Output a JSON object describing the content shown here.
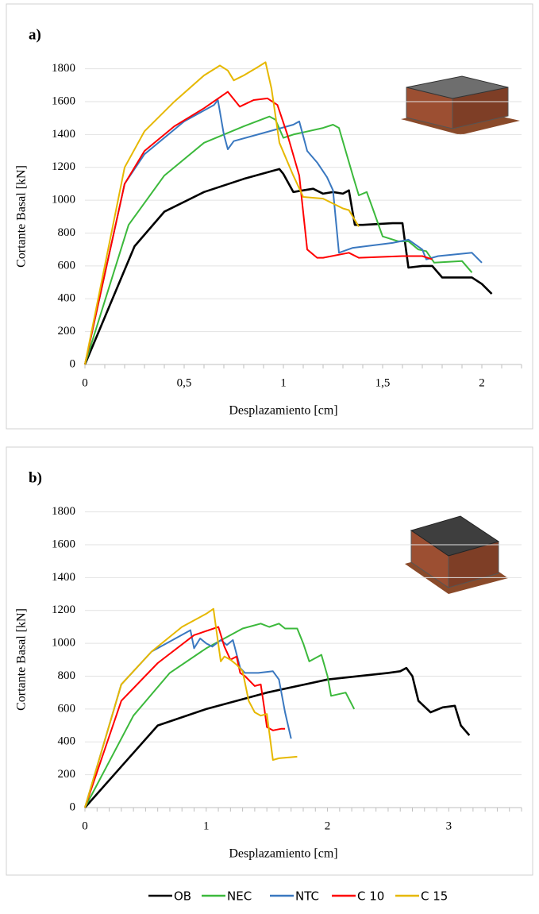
{
  "chart_data": [
    {
      "type": "line",
      "label": "a)",
      "xlabel": "Desplazamiento [cm]",
      "ylabel": "Cortante Basal [kN]",
      "xlim": [
        0,
        2.2
      ],
      "ylim": [
        0,
        1900
      ],
      "xticks": [
        0,
        {
          "value": 0.5,
          "label": "0,5"
        },
        1,
        {
          "value": 1.5,
          "label": "1,5"
        },
        2
      ],
      "yticks": [
        0,
        200,
        400,
        600,
        800,
        1000,
        1200,
        1400,
        1600,
        1800
      ],
      "grid": true,
      "series": [
        {
          "name": "OB",
          "color": "#000000",
          "x": [
            0,
            0.25,
            0.4,
            0.6,
            0.8,
            0.95,
            0.98,
            1.0,
            1.05,
            1.1,
            1.15,
            1.2,
            1.25,
            1.3,
            1.33,
            1.36,
            1.4,
            1.55,
            1.6,
            1.63,
            1.7,
            1.75,
            1.8,
            1.9,
            1.95,
            2.0,
            2.05
          ],
          "values": [
            0,
            720,
            930,
            1050,
            1130,
            1180,
            1190,
            1160,
            1050,
            1060,
            1070,
            1040,
            1050,
            1040,
            1060,
            850,
            850,
            860,
            860,
            590,
            600,
            600,
            530,
            530,
            530,
            490,
            430
          ]
        },
        {
          "name": "NEC",
          "color": "#3cb93c",
          "x": [
            0,
            0.22,
            0.4,
            0.6,
            0.8,
            0.93,
            0.96,
            1.0,
            1.05,
            1.2,
            1.25,
            1.28,
            1.35,
            1.38,
            1.42,
            1.45,
            1.5,
            1.58,
            1.63,
            1.68,
            1.72,
            1.76,
            1.9,
            1.95
          ],
          "values": [
            0,
            850,
            1150,
            1350,
            1450,
            1510,
            1490,
            1380,
            1400,
            1440,
            1460,
            1440,
            1150,
            1030,
            1050,
            950,
            780,
            750,
            750,
            700,
            690,
            620,
            630,
            560
          ]
        },
        {
          "name": "NTC",
          "color": "#3a78c0",
          "x": [
            0,
            0.2,
            0.3,
            0.5,
            0.65,
            0.67,
            0.7,
            0.72,
            0.75,
            0.9,
            1.05,
            1.08,
            1.12,
            1.17,
            1.22,
            1.25,
            1.28,
            1.35,
            1.55,
            1.63,
            1.7,
            1.72,
            1.78,
            1.95,
            2.0
          ],
          "values": [
            0,
            1100,
            1280,
            1480,
            1580,
            1610,
            1400,
            1310,
            1360,
            1410,
            1460,
            1480,
            1300,
            1230,
            1140,
            1060,
            680,
            710,
            740,
            760,
            700,
            640,
            660,
            680,
            620
          ]
        },
        {
          "name": "C 10",
          "color": "#ff0000",
          "x": [
            0,
            0.2,
            0.3,
            0.45,
            0.6,
            0.72,
            0.78,
            0.85,
            0.92,
            0.97,
            1.02,
            1.08,
            1.12,
            1.17,
            1.2,
            1.33,
            1.38,
            1.6,
            1.7,
            1.75
          ],
          "values": [
            0,
            1100,
            1300,
            1450,
            1560,
            1660,
            1570,
            1610,
            1620,
            1580,
            1400,
            1150,
            700,
            650,
            650,
            680,
            650,
            660,
            660,
            640
          ]
        },
        {
          "name": "C 15",
          "color": "#e6b800",
          "x": [
            0,
            0.2,
            0.3,
            0.45,
            0.6,
            0.68,
            0.72,
            0.75,
            0.8,
            0.87,
            0.91,
            0.94,
            0.98,
            1.05,
            1.1,
            1.2,
            1.3,
            1.33,
            1.38
          ],
          "values": [
            0,
            1200,
            1420,
            1600,
            1760,
            1820,
            1790,
            1730,
            1760,
            1810,
            1840,
            1680,
            1350,
            1150,
            1020,
            1010,
            950,
            940,
            840
          ]
        }
      ]
    },
    {
      "type": "line",
      "label": "b)",
      "xlabel": "Desplazamiento [cm]",
      "ylabel": "Cortante Basal [kN]",
      "xlim": [
        0,
        3.6
      ],
      "ylim": [
        0,
        1900
      ],
      "xticks": [
        0,
        1,
        2,
        3
      ],
      "yticks": [
        0,
        200,
        400,
        600,
        800,
        1000,
        1200,
        1400,
        1600,
        1800
      ],
      "grid": true,
      "series": [
        {
          "color": "#000000",
          "x": [
            0,
            0.3,
            0.6,
            1,
            1.5,
            2,
            2.5,
            2.6,
            2.65,
            2.7,
            2.75,
            2.85,
            2.95,
            3.05,
            3.1,
            3.17
          ],
          "values": [
            0,
            250,
            500,
            600,
            700,
            780,
            820,
            830,
            850,
            800,
            650,
            580,
            610,
            620,
            500,
            440
          ]
        },
        {
          "color": "#3cb93c",
          "x": [
            0,
            0.4,
            0.7,
            1,
            1.3,
            1.45,
            1.52,
            1.6,
            1.65,
            1.75,
            1.8,
            1.85,
            1.95,
            2.0,
            2.03,
            2.15,
            2.22
          ],
          "values": [
            0,
            560,
            820,
            970,
            1090,
            1120,
            1100,
            1120,
            1090,
            1090,
            1000,
            890,
            930,
            800,
            680,
            700,
            600
          ]
        },
        {
          "color": "#3a78c0",
          "x": [
            0,
            0.3,
            0.55,
            0.87,
            0.9,
            0.95,
            1.0,
            1.05,
            1.12,
            1.17,
            1.22,
            1.28,
            1.32,
            1.38,
            1.43,
            1.55,
            1.6,
            1.65,
            1.7
          ],
          "values": [
            0,
            750,
            950,
            1080,
            970,
            1030,
            1000,
            980,
            1020,
            990,
            1020,
            850,
            820,
            820,
            820,
            830,
            780,
            580,
            420
          ]
        },
        {
          "color": "#ff0000",
          "x": [
            0,
            0.3,
            0.6,
            0.9,
            1.1,
            1.15,
            1.2,
            1.25,
            1.28,
            1.32,
            1.4,
            1.45,
            1.48,
            1.5,
            1.55,
            1.62,
            1.65
          ],
          "values": [
            0,
            650,
            880,
            1050,
            1100,
            980,
            900,
            920,
            820,
            800,
            740,
            750,
            600,
            490,
            470,
            480,
            480
          ]
        },
        {
          "color": "#e6b800",
          "x": [
            0,
            0.3,
            0.55,
            0.8,
            1.0,
            1.06,
            1.08,
            1.12,
            1.15,
            1.2,
            1.25,
            1.3,
            1.35,
            1.4,
            1.45,
            1.5,
            1.53,
            1.55,
            1.6,
            1.75
          ],
          "values": [
            0,
            750,
            950,
            1100,
            1180,
            1210,
            1100,
            890,
            920,
            900,
            870,
            830,
            650,
            580,
            560,
            570,
            400,
            290,
            300,
            310
          ]
        }
      ]
    }
  ]
}
